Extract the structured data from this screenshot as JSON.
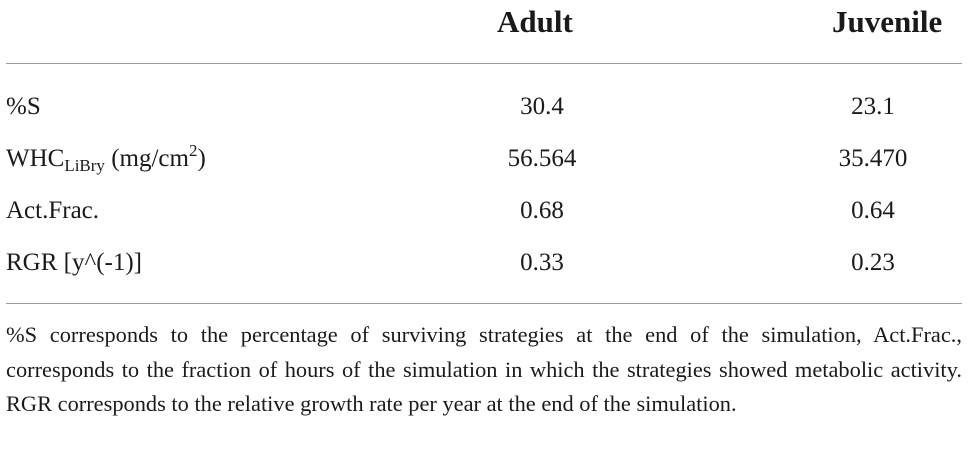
{
  "table": {
    "columns": [
      "Adult",
      "Juvenile"
    ],
    "rows": [
      {
        "label": "%S",
        "adult": "30.4",
        "juvenile": "23.1"
      },
      {
        "label_main": "WHC",
        "label_sub": "LiBry",
        "label_unit_pre": "(mg/cm",
        "label_sup": "2",
        "label_unit_post": ")",
        "adult": "56.564",
        "juvenile": "35.470"
      },
      {
        "label": "Act.Frac.",
        "adult": "0.68",
        "juvenile": "0.64"
      },
      {
        "label": "RGR [y^(-1)]",
        "adult": "0.33",
        "juvenile": "0.23"
      }
    ]
  },
  "footnote": "%S corresponds to the percentage of surviving strategies at the end of the simulation, Act.Frac., corresponds to the fraction of hours of the simulation in which the strategies showed metabolic activity. RGR corresponds to the relative growth rate per year at the end of the simulation."
}
